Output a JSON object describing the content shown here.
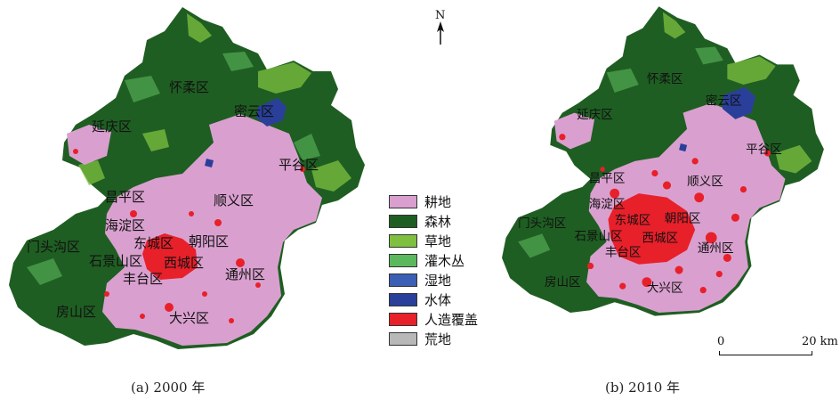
{
  "north_label": "N",
  "scale": {
    "zero": "0",
    "max": "20 km"
  },
  "legend": [
    {
      "label": "耕地",
      "color": "#d9a0cf"
    },
    {
      "label": "森林",
      "color": "#1f5e22"
    },
    {
      "label": "草地",
      "color": "#7fc13f"
    },
    {
      "label": "灌木丛",
      "color": "#5cb85c"
    },
    {
      "label": "湿地",
      "color": "#3b5fb5"
    },
    {
      "label": "水体",
      "color": "#2a3f9a"
    },
    {
      "label": "人造覆盖",
      "color": "#e8202a"
    },
    {
      "label": "荒地",
      "color": "#b8b8b8"
    }
  ],
  "maps": [
    {
      "caption": "(a) 2000 年",
      "districts": [
        "怀柔区",
        "密云区",
        "延庆区",
        "平谷区",
        "昌平区",
        "顺义区",
        "海淀区",
        "门头沟区",
        "东城区",
        "朝阳区",
        "石景山区",
        "西城区",
        "丰台区",
        "通州区",
        "房山区",
        "大兴区"
      ]
    },
    {
      "caption": "(b) 2010 年",
      "districts": [
        "怀柔区",
        "密云区",
        "延庆区",
        "平谷区",
        "昌平区",
        "顺义区",
        "海淀区",
        "门头沟区",
        "东城区",
        "朝阳区",
        "石景山区",
        "西城区",
        "丰台区",
        "通州区",
        "房山区",
        "大兴区"
      ]
    }
  ]
}
